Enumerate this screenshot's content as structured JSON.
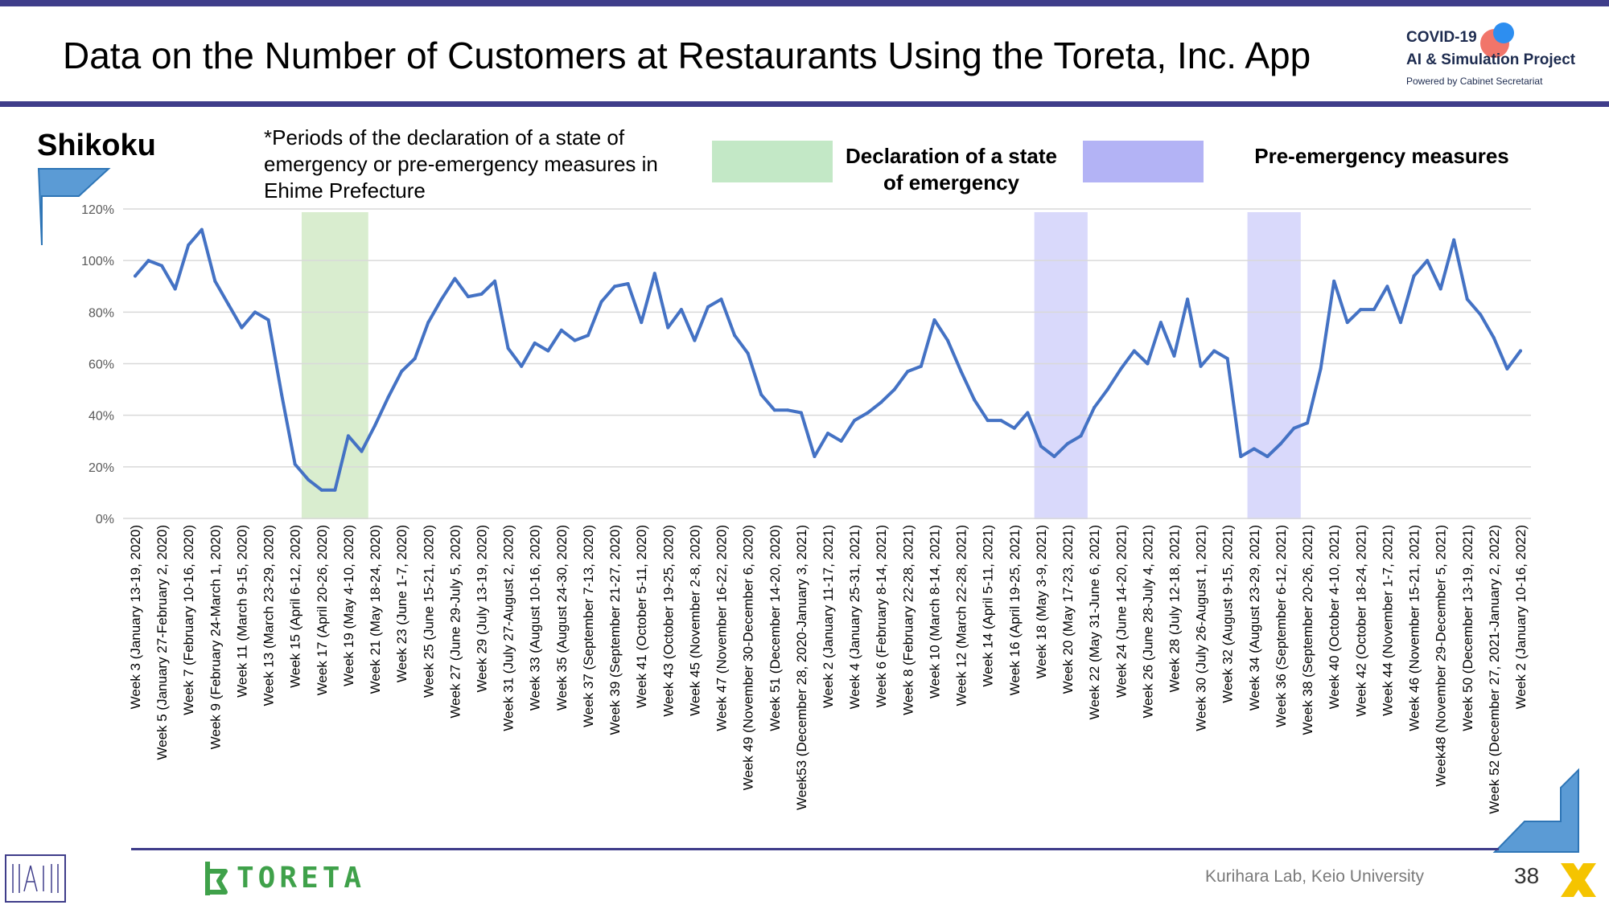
{
  "title": "Data on the Number of Customers at Restaurants Using the Toreta, Inc. App",
  "brand": {
    "line1": "COVID-19",
    "line2": "AI & Simulation Project",
    "line3": "Powered by Cabinet Secretariat"
  },
  "region": "Shikoku",
  "note": "*Periods of the declaration of a state of emergency or pre-emergency measures in Ehime Prefecture",
  "legend": [
    {
      "label": "Declaration of a state of emergency",
      "color": "#c3e8c6"
    },
    {
      "label": "Pre-emergency measures",
      "color": "#b3b3f5"
    }
  ],
  "footer": {
    "credit": "Kurihara Lab, Keio University",
    "page": "38",
    "toreta_logo": "TORETA"
  },
  "colors": {
    "line": "#4472c4",
    "accent": "#3f3d8a",
    "emergency_band": "#d9edcf",
    "pre_emergency_band": "#d9d9fb"
  },
  "chart_data": {
    "type": "line",
    "title": "",
    "xlabel": "",
    "ylabel": "",
    "ylim": [
      0,
      120
    ],
    "y_ticks": [
      "0%",
      "20%",
      "40%",
      "60%",
      "80%",
      "100%",
      "120%"
    ],
    "grid": true,
    "x_tick_labels": [
      "Week 3 (January 13-19, 2020)",
      "Week 5 (January 27-February 2, 2020)",
      "Week 7 (February 10-16, 2020)",
      "Week 9 (February 24-March 1, 2020)",
      "Week 11 (March 9-15, 2020)",
      "Week 13 (March 23-29, 2020)",
      "Week 15 (April 6-12, 2020)",
      "Week 17 (April 20-26, 2020)",
      "Week 19 (May 4-10, 2020)",
      "Week 21 (May 18-24, 2020)",
      "Week 23 (June 1-7, 2020)",
      "Week 25 (June 15-21, 2020)",
      "Week 27 (June 29-July 5, 2020)",
      "Week 29 (July 13-19, 2020)",
      "Week 31 (July 27-August 2, 2020)",
      "Week 33 (August 10-16, 2020)",
      "Week 35 (August 24-30, 2020)",
      "Week 37 (September 7-13, 2020)",
      "Week 39 (September 21-27, 2020)",
      "Week 41 (October 5-11, 2020)",
      "Week 43 (October 19-25, 2020)",
      "Week 45 (November 2-8, 2020)",
      "Week 47 (November 16-22, 2020)",
      "Week 49 (November 30-December 6, 2020)",
      "Week 51 (December 14-20, 2020)",
      "Week53 (December 28, 2020-January 3, 2021)",
      "Week 2 (January 11-17, 2021)",
      "Week 4 (January 25-31, 2021)",
      "Week 6 (February 8-14, 2021)",
      "Week 8 (February 22-28, 2021)",
      "Week 10 (March 8-14, 2021)",
      "Week 12 (March 22-28, 2021)",
      "Week 14 (April 5-11, 2021)",
      "Week 16 (April 19-25, 2021)",
      "Week 18 (May 3-9, 2021)",
      "Week 20 (May 17-23, 2021)",
      "Week 22 (May 31-June 6, 2021)",
      "Week 24 (June 14-20, 2021)",
      "Week 26 (June 28-July 4, 2021)",
      "Week 28 (July 12-18, 2021)",
      "Week 30 (July 26-August 1, 2021)",
      "Week 32 (August 9-15, 2021)",
      "Week 34 (August 23-29, 2021)",
      "Week 36 (September 6-12, 2021)",
      "Week 38 (September 20-26, 2021)",
      "Week 40 (October 4-10, 2021)",
      "Week 42 (October 18-24, 2021)",
      "Week 44 (November 1-7, 2021)",
      "Week 46 (November 15-21, 2021)",
      "Week48 (November 29-December 5, 2021)",
      "Week 50 (December 13-19, 2021)",
      "Week 52 (December 27, 2021-January 2, 2022)",
      "Week 2 (January 10-16, 2022)"
    ],
    "series": [
      {
        "values": [
          94,
          100,
          98,
          89,
          106,
          112,
          92,
          83,
          74,
          80,
          77,
          48,
          21,
          15,
          11,
          11,
          32,
          26,
          36,
          47,
          57,
          62,
          76,
          85,
          93,
          86,
          87,
          92,
          66,
          59,
          68,
          65,
          73,
          69,
          71,
          84,
          90,
          91,
          76,
          95,
          74,
          81,
          69,
          82,
          85,
          71,
          64,
          48,
          42,
          42,
          41,
          24,
          33,
          30,
          38,
          41,
          45,
          50,
          57,
          59,
          77,
          69,
          57,
          46,
          38,
          38,
          35,
          41,
          28,
          24,
          29,
          32,
          43,
          50,
          58,
          65,
          60,
          76,
          63,
          85,
          59,
          65,
          62,
          24,
          27,
          24,
          29,
          35,
          37,
          58,
          92,
          76,
          81,
          81,
          90,
          76,
          94,
          100,
          89,
          108,
          85,
          79,
          70,
          58,
          65
        ]
      }
    ],
    "bands": [
      {
        "type": "Declaration of a state of emergency",
        "from_week": "Week 15 (April 6-12, 2020)",
        "to_week": "Week 19 (May 4-10, 2020)"
      },
      {
        "type": "Pre-emergency measures",
        "from_week": "Week 18 (May 3-9, 2021)",
        "to_week": "Week 21 (May 24-30, 2021)"
      },
      {
        "type": "Pre-emergency measures",
        "from_week": "Week 34 (August 23-29, 2021)",
        "to_week": "Week 37 (September 13-19, 2021)"
      }
    ]
  }
}
